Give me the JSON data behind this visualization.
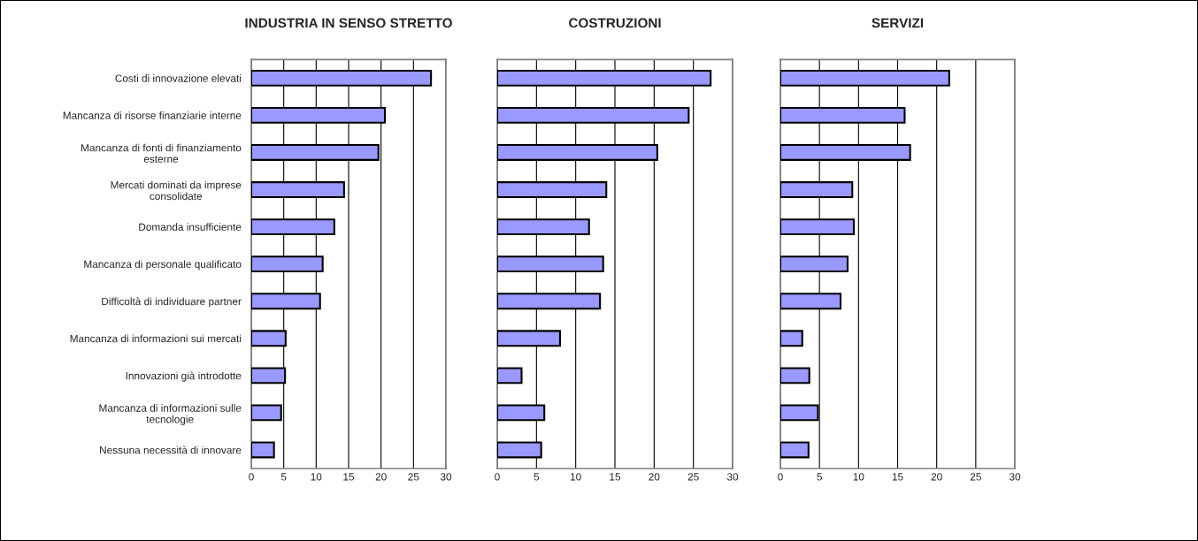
{
  "chart_data": [
    {
      "type": "bar",
      "orientation": "horizontal",
      "title": "INDUSTRIA IN SENSO STRETTO",
      "categories": [
        "Costi di innovazione elevati",
        "Mancanza di risorse finanziarie interne",
        "Mancanza di fonti di finanziamento\nesterne",
        "Mercati dominati da imprese\nconsolidate",
        "Domanda insufficiente",
        "Mancanza di personale qualificato",
        "Difficoltà di individuare partner",
        "Mancanza di informazioni sui mercati",
        "Innovazioni già introdotte",
        "Mancanza di informazioni sulle\ntecnologie",
        "Nessuna necessità di innovare"
      ],
      "values": [
        27.7,
        20.6,
        19.6,
        14.3,
        12.8,
        11.0,
        10.6,
        5.3,
        5.2,
        4.6,
        3.5
      ],
      "color": "#9999ff",
      "xlim": [
        0,
        30
      ],
      "xticks": [
        0,
        5,
        10,
        15,
        20,
        25,
        30
      ],
      "grid": "x"
    },
    {
      "type": "bar",
      "orientation": "horizontal",
      "title": "COSTRUZIONI",
      "categories": [
        null,
        null,
        null,
        null,
        null,
        null,
        null,
        null,
        null,
        null,
        null
      ],
      "values": [
        27.2,
        24.4,
        20.4,
        13.9,
        11.7,
        13.5,
        13.1,
        8.0,
        3.1,
        6.0,
        5.6
      ],
      "color": "#9999ff",
      "xlim": [
        0,
        30
      ],
      "xticks": [
        0,
        5,
        10,
        15,
        20,
        25,
        30
      ],
      "grid": "x",
      "tick_labels": "x"
    },
    {
      "type": "bar",
      "orientation": "horizontal",
      "title": "SERVIZI",
      "categories": [
        null,
        null,
        null,
        null,
        null,
        null,
        null,
        null,
        null,
        null,
        null
      ],
      "values": [
        21.6,
        15.9,
        16.6,
        9.2,
        9.4,
        8.6,
        7.7,
        2.8,
        3.7,
        4.8,
        3.6
      ],
      "color": "#9999ff",
      "xlim": [
        0,
        30
      ],
      "xticks": [
        0,
        5,
        10,
        15,
        20,
        25,
        30
      ],
      "grid": "x",
      "tick_labels": "x"
    }
  ]
}
